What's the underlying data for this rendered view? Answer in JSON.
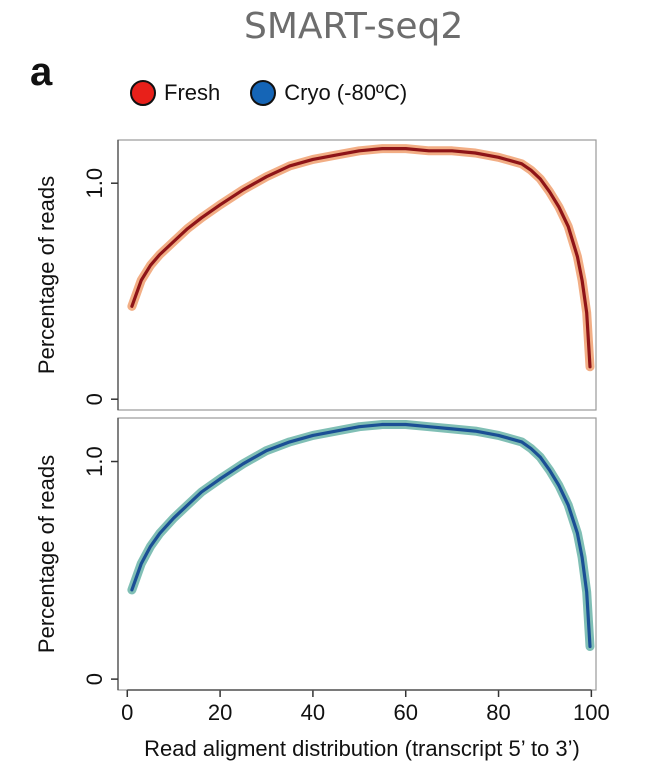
{
  "page_title": "SMART-seq2",
  "panel_label": "a",
  "legend": [
    {
      "label": "Fresh",
      "color": "#e8201a"
    },
    {
      "label": "Cryo (-80ºC)",
      "color": "#1565b6"
    }
  ],
  "chart_data": [
    {
      "type": "line",
      "xlabel": "",
      "ylabel": "Percentage of reads",
      "xlim": [
        -2,
        101
      ],
      "ylim": [
        -0.05,
        1.2
      ],
      "xticks": [],
      "yticks": [
        "0",
        "1.0"
      ],
      "ytick_values": [
        0,
        1.0
      ],
      "series": [
        {
          "name": "Fresh",
          "color": "#8e1418",
          "band_color": "#f0a070",
          "x": [
            1,
            3,
            5,
            7,
            10,
            13,
            16,
            20,
            25,
            30,
            35,
            40,
            45,
            50,
            55,
            60,
            65,
            70,
            75,
            80,
            85,
            87,
            89,
            91,
            93,
            95,
            97,
            98,
            99,
            99.7
          ],
          "y": [
            0.43,
            0.55,
            0.62,
            0.67,
            0.73,
            0.79,
            0.84,
            0.9,
            0.97,
            1.03,
            1.08,
            1.11,
            1.13,
            1.15,
            1.16,
            1.16,
            1.15,
            1.15,
            1.14,
            1.12,
            1.09,
            1.06,
            1.02,
            0.96,
            0.89,
            0.8,
            0.66,
            0.55,
            0.4,
            0.15
          ]
        }
      ]
    },
    {
      "type": "line",
      "xlabel": "Read aligment distribution (transcript 5’ to 3’)",
      "ylabel": "Percentage of reads",
      "xlim": [
        -2,
        101
      ],
      "ylim": [
        -0.05,
        1.2
      ],
      "xticks": [
        "0",
        "20",
        "40",
        "60",
        "80",
        "100"
      ],
      "xtick_values": [
        0,
        20,
        40,
        60,
        80,
        100
      ],
      "yticks": [
        "0",
        "1.0"
      ],
      "ytick_values": [
        0,
        1.0
      ],
      "series": [
        {
          "name": "Cryo (-80ºC)",
          "color": "#1b4f95",
          "band_color": "#6ab4a8",
          "x": [
            1,
            3,
            5,
            7,
            10,
            13,
            16,
            20,
            25,
            30,
            35,
            40,
            45,
            50,
            55,
            60,
            65,
            70,
            75,
            80,
            85,
            87,
            89,
            91,
            93,
            95,
            97,
            98,
            99,
            99.7
          ],
          "y": [
            0.41,
            0.53,
            0.61,
            0.67,
            0.74,
            0.8,
            0.86,
            0.92,
            0.99,
            1.05,
            1.09,
            1.12,
            1.14,
            1.16,
            1.17,
            1.17,
            1.16,
            1.15,
            1.14,
            1.12,
            1.09,
            1.06,
            1.02,
            0.96,
            0.89,
            0.8,
            0.67,
            0.56,
            0.4,
            0.15
          ]
        }
      ]
    }
  ]
}
